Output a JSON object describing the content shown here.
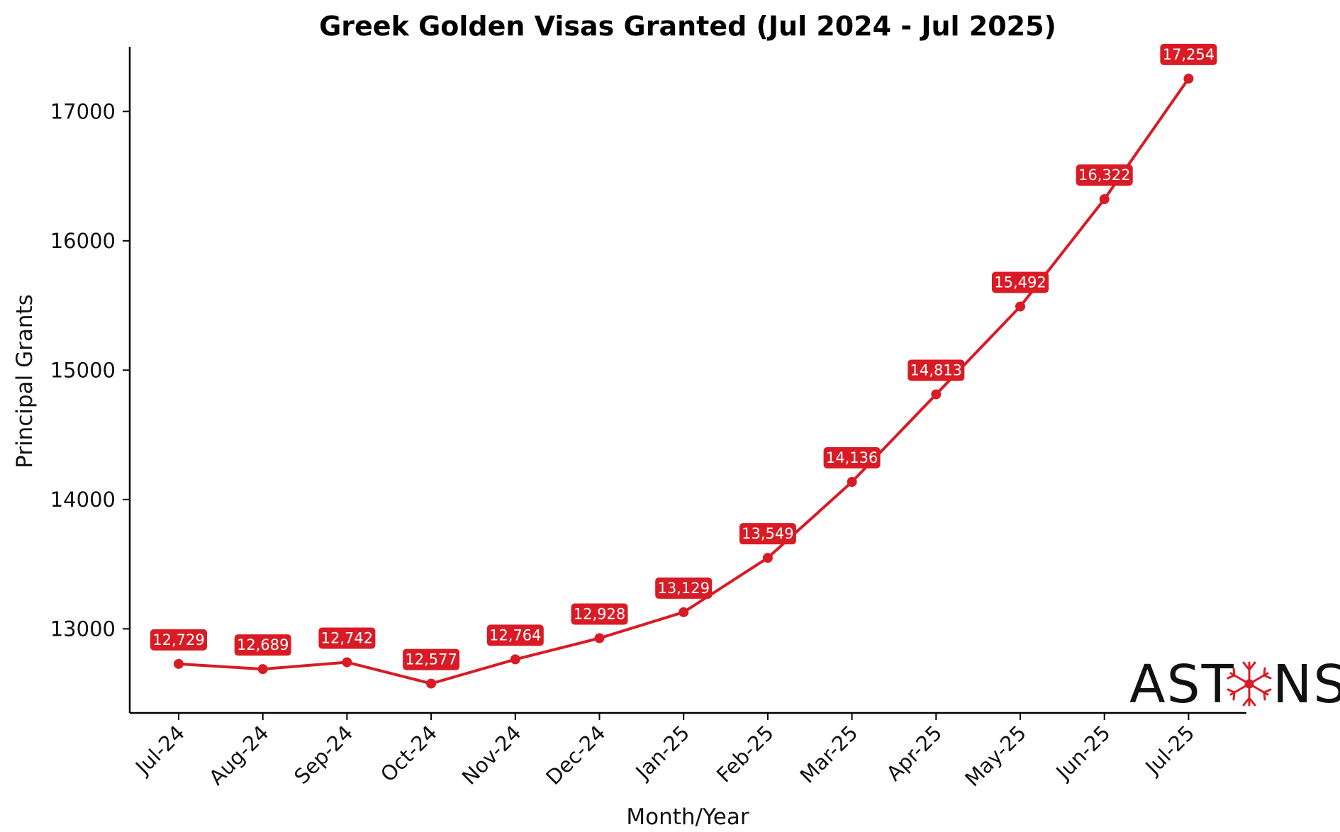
{
  "chart_data": {
    "type": "line",
    "title": "Greek Golden Visas Granted (Jul 2024 - Jul 2025)",
    "xlabel": "Month/Year",
    "ylabel": "Principal Grants",
    "categories": [
      "Jul-24",
      "Aug-24",
      "Sep-24",
      "Oct-24",
      "Nov-24",
      "Dec-24",
      "Jan-25",
      "Feb-25",
      "Mar-25",
      "Apr-25",
      "May-25",
      "Jun-25",
      "Jul-25"
    ],
    "values": [
      12729,
      12689,
      12742,
      12577,
      12764,
      12928,
      13129,
      13549,
      14136,
      14813,
      15492,
      16322,
      17254
    ],
    "data_labels": [
      "12,729",
      "12,689",
      "12,742",
      "12,577",
      "12,764",
      "12,928",
      "13,129",
      "13,549",
      "14,136",
      "14,813",
      "15,492",
      "16,322",
      "17,254"
    ],
    "yticks": [
      13000,
      14000,
      15000,
      16000,
      17000
    ],
    "ylim": [
      12350,
      17500
    ],
    "grid": false,
    "legend": "none",
    "colors": {
      "line": "#d81b25",
      "label_box": "#d81b25",
      "label_text": "#ffffff",
      "axis": "#000000"
    }
  },
  "logo": {
    "text_left": "AST",
    "text_right": "NS",
    "mark_icon": "snowflake-star-icon",
    "color_mark": "#d81b25"
  }
}
